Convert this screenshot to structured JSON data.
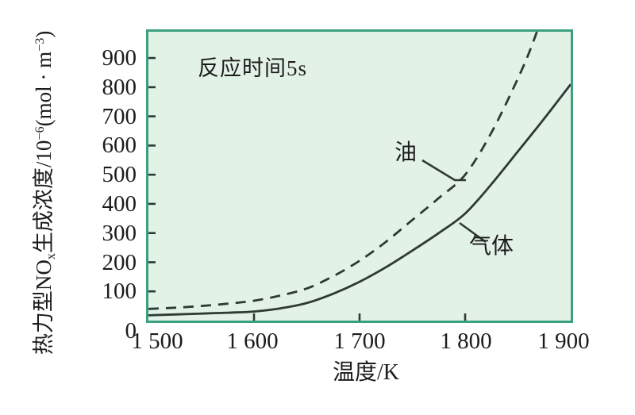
{
  "chart_data": {
    "type": "line",
    "annotation": "反应时间5s",
    "xlabel": "温度/K",
    "ylabel_parts": {
      "p1": "热力型NO",
      "sub": "x",
      "p2": "生成浓度/10",
      "sup1": "−6",
      "p3": "(mol · m",
      "sup2": "−3",
      "p4": ")"
    },
    "xlim": [
      1500,
      1900
    ],
    "ylim": [
      0,
      990
    ],
    "grid": false,
    "xticks": {
      "values": [
        1500,
        1600,
        1700,
        1800,
        1900
      ],
      "labels": [
        "1 500",
        "1 600",
        "1 700",
        "1 800",
        "1 900"
      ]
    },
    "yticks": {
      "values": [
        0,
        100,
        200,
        300,
        400,
        500,
        600,
        700,
        800,
        900
      ],
      "labels": [
        "0",
        "100",
        "200",
        "300",
        "400",
        "500",
        "600",
        "700",
        "800",
        "900"
      ]
    },
    "series": [
      {
        "name": "oil",
        "label": "油",
        "style": "dashed",
        "x": [
          1500,
          1525,
          1550,
          1575,
          1600,
          1625,
          1650,
          1675,
          1700,
          1725,
          1750,
          1775,
          1800,
          1825,
          1850,
          1865,
          1880
        ],
        "y": [
          40,
          44,
          50,
          58,
          68,
          86,
          110,
          152,
          205,
          270,
          345,
          420,
          500,
          645,
          830,
          960,
          1120
        ]
      },
      {
        "name": "gas",
        "label": "气体",
        "style": "solid",
        "x": [
          1500,
          1525,
          1550,
          1575,
          1600,
          1625,
          1650,
          1675,
          1700,
          1725,
          1750,
          1775,
          1800,
          1825,
          1850,
          1875,
          1900
        ],
        "y": [
          18,
          21,
          24,
          27,
          31,
          42,
          60,
          92,
          133,
          183,
          240,
          300,
          367,
          468,
          580,
          693,
          810
        ]
      }
    ],
    "colors": {
      "plot_bg": "#e3f2e6",
      "frame": "#3aa17c",
      "curve": "#2e3a34",
      "text": "#1c1c1c"
    }
  }
}
